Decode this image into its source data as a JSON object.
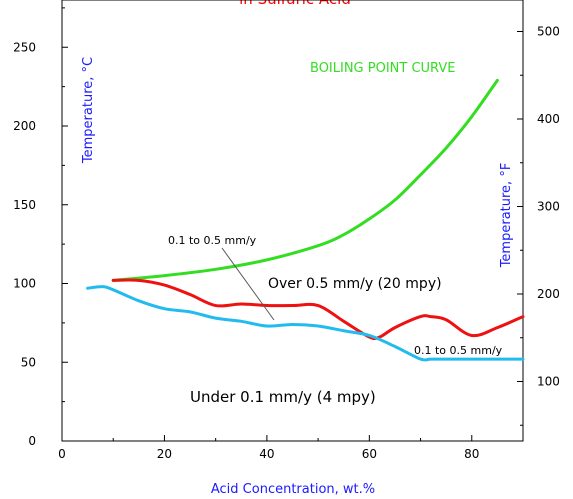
{
  "chart_data": {
    "type": "line",
    "title": "in Sulfuric Acid",
    "xlabel": "Acid Concentration, wt.%",
    "ylabel_left": "Temperature, °C",
    "ylabel_right": "Temperature, °F",
    "xlim": [
      0,
      90
    ],
    "ylim": [
      0,
      280
    ],
    "y2lim": [
      32,
      536
    ],
    "x_ticks": [
      0,
      20,
      40,
      60,
      80
    ],
    "y_ticks": [
      0,
      50,
      100,
      150,
      200,
      250
    ],
    "y2_ticks": [
      100,
      200,
      300,
      400,
      500
    ],
    "grid": false,
    "colors": {
      "title": "#ff0000",
      "axis_labels": "#1a1aff",
      "boiling": "#33dd22",
      "red_curve": "#ee1111",
      "blue_curve": "#22bbee",
      "pointer": "#555555"
    },
    "series": [
      {
        "name": "BOILING POINT CURVE",
        "x": [
          10,
          20,
          30,
          40,
          50,
          55,
          60,
          65,
          70,
          75,
          80,
          85
        ],
        "y": [
          102,
          105,
          109,
          115,
          124,
          131,
          141,
          153,
          169,
          186,
          206,
          229
        ]
      },
      {
        "x": [
          10,
          15,
          20,
          25,
          30,
          35,
          40,
          45,
          50,
          55,
          60,
          62,
          65,
          70,
          72,
          75,
          80,
          85,
          90
        ],
        "y": [
          102,
          102,
          99,
          93,
          86,
          87,
          86,
          86,
          86,
          76,
          66,
          66,
          72,
          79,
          79,
          77,
          67,
          72,
          79
        ]
      },
      {
        "x": [
          5,
          8,
          10,
          15,
          20,
          25,
          30,
          35,
          40,
          45,
          50,
          55,
          60,
          65,
          70,
          72,
          75,
          80,
          85,
          90
        ],
        "y": [
          97,
          98,
          96,
          89,
          84,
          82,
          78,
          76,
          73,
          74,
          73,
          70,
          67,
          60,
          52,
          52,
          52,
          52,
          52,
          52
        ]
      }
    ],
    "annotations": {
      "boiling": "BOILING POINT CURVE",
      "over": "Over 0.5 mm/y (20 mpy)",
      "mid_upper": "0.1 to 0.5 mm/y",
      "mid_lower": "0.1 to 0.5 mm/y",
      "under": "Under 0.1 mm/y (4 mpy)"
    }
  }
}
